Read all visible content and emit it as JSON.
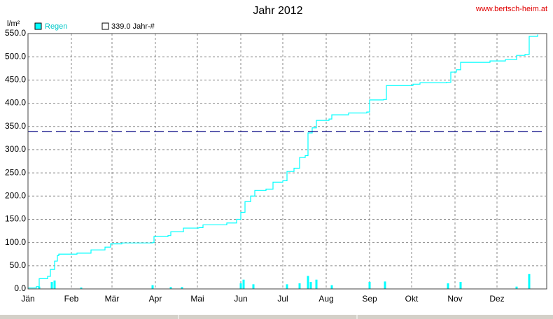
{
  "chart_data": {
    "type": "line",
    "title": "Jahr 2012",
    "source": "www.bertsch-heim.at",
    "y_label": "l/m²",
    "xlim": [
      0,
      370
    ],
    "ylim": [
      0,
      550
    ],
    "grid": true,
    "xticks": [
      {
        "value": 0,
        "label": "Jän"
      },
      {
        "value": 31,
        "label": "Feb"
      },
      {
        "value": 60,
        "label": "Mär"
      },
      {
        "value": 91,
        "label": "Apr"
      },
      {
        "value": 121,
        "label": "Mai"
      },
      {
        "value": 152,
        "label": "Jun"
      },
      {
        "value": 182,
        "label": "Jul"
      },
      {
        "value": 213,
        "label": "Aug"
      },
      {
        "value": 244,
        "label": "Sep"
      },
      {
        "value": 274,
        "label": "Okt"
      },
      {
        "value": 305,
        "label": "Nov"
      },
      {
        "value": 335,
        "label": "Dez"
      }
    ],
    "yticks": [
      {
        "value": 0,
        "label": "0.0"
      },
      {
        "value": 50,
        "label": "50.0"
      },
      {
        "value": 100,
        "label": "100.0"
      },
      {
        "value": 150,
        "label": "150.0"
      },
      {
        "value": 200,
        "label": "200.0"
      },
      {
        "value": 250,
        "label": "250.0"
      },
      {
        "value": 300,
        "label": "300.0"
      },
      {
        "value": 350,
        "label": "350.0"
      },
      {
        "value": 400,
        "label": "400.0"
      },
      {
        "value": 450,
        "label": "450.0"
      },
      {
        "value": 500,
        "label": "500.0"
      },
      {
        "value": 550,
        "label": "550.0"
      }
    ],
    "reference_line": {
      "value": 339,
      "label": "339.0 Jahr-#",
      "color": "#000080"
    },
    "series": [
      {
        "name": "Regen",
        "type": "line",
        "color": "#00ffff",
        "x": [
          0,
          6,
          8,
          14,
          16,
          19,
          21,
          22,
          35,
          45,
          55,
          59,
          67,
          89,
          90,
          100,
          102,
          111,
          122,
          125,
          142,
          149,
          152,
          155,
          159,
          162,
          170,
          175,
          182,
          185,
          190,
          194,
          198,
          200,
          203,
          206,
          215,
          217,
          229,
          242,
          244,
          254,
          256,
          275,
          280,
          299,
          302,
          306,
          309,
          330,
          341,
          349,
          355,
          358,
          364
        ],
        "values": [
          2,
          5,
          22,
          27,
          42,
          60,
          72,
          75,
          77,
          84,
          90,
          97,
          99,
          100,
          113,
          115,
          123,
          131,
          132,
          138,
          142,
          150,
          165,
          188,
          200,
          212,
          215,
          230,
          233,
          253,
          260,
          283,
          287,
          336,
          347,
          363,
          366,
          375,
          379,
          381,
          407,
          408,
          438,
          441,
          444,
          445,
          467,
          472,
          488,
          491,
          494,
          503,
          505,
          544,
          548
        ]
      },
      {
        "type": "bar",
        "color": "#00ffff",
        "x": [
          8,
          17,
          19,
          38,
          89,
          102,
          110,
          152,
          154,
          161,
          185,
          194,
          200,
          202,
          206,
          217,
          244,
          255,
          300,
          309,
          349,
          358
        ],
        "values": [
          5,
          15,
          18,
          3,
          8,
          4,
          4,
          12,
          20,
          10,
          10,
          12,
          28,
          15,
          20,
          8,
          15,
          16,
          12,
          15,
          5,
          32
        ]
      }
    ]
  }
}
